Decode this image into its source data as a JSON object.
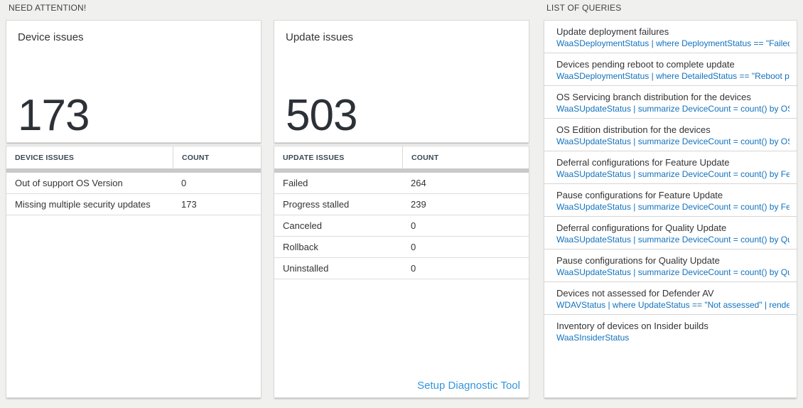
{
  "colors": {
    "background": "#f0f0ee",
    "big_number_text": "#2b3137",
    "query_link_blue": "#1272bd",
    "setup_link_blue": "#3296dc",
    "scrollband_gray": "#c9c9c9"
  },
  "need_attention": {
    "section_title": "NEED ATTENTION!",
    "cards": [
      {
        "title": "Device issues",
        "big_number": "173",
        "table": {
          "columns": [
            "DEVICE ISSUES",
            "COUNT"
          ],
          "rows": [
            {
              "label": "Out of support OS Version",
              "count": "0"
            },
            {
              "label": "Missing multiple security updates",
              "count": "173"
            }
          ]
        }
      },
      {
        "title": "Update issues",
        "big_number": "503",
        "table": {
          "columns": [
            "UPDATE ISSUES",
            "COUNT"
          ],
          "rows": [
            {
              "label": "Failed",
              "count": "264"
            },
            {
              "label": "Progress stalled",
              "count": "239"
            },
            {
              "label": "Canceled",
              "count": "0"
            },
            {
              "label": "Rollback",
              "count": "0"
            },
            {
              "label": "Uninstalled",
              "count": "0"
            }
          ]
        },
        "footer_link": "Setup Diagnostic Tool"
      }
    ]
  },
  "queries": {
    "section_title": "LIST OF QUERIES",
    "items": [
      {
        "title": "Update deployment failures",
        "query": "WaaSDeploymentStatus | where DeploymentStatus == \"Failed\" |..."
      },
      {
        "title": "Devices pending reboot to complete update",
        "query": "WaaSDeploymentStatus | where DetailedStatus == \"Reboot pend..."
      },
      {
        "title": "OS Servicing branch distribution for the devices",
        "query": "WaaSUpdateStatus | summarize DeviceCount = count() by OSSer..."
      },
      {
        "title": "OS Edition distribution for the devices",
        "query": "WaaSUpdateStatus | summarize DeviceCount = count() by OSEdit..."
      },
      {
        "title": "Deferral configurations for Feature Update",
        "query": "WaaSUpdateStatus | summarize DeviceCount = count() by Featur..."
      },
      {
        "title": "Pause configurations for Feature Update",
        "query": "WaaSUpdateStatus | summarize DeviceCount = count() by Featur..."
      },
      {
        "title": "Deferral configurations for Quality Update",
        "query": "WaaSUpdateStatus | summarize DeviceCount = count() by Qualit..."
      },
      {
        "title": "Pause configurations for Quality Update",
        "query": "WaaSUpdateStatus | summarize DeviceCount = count() by Qualit..."
      },
      {
        "title": "Devices not assessed for Defender AV",
        "query": "WDAVStatus | where UpdateStatus == \"Not assessed\" | render ta..."
      },
      {
        "title": "Inventory of devices on Insider builds",
        "query": "WaaSInsiderStatus"
      }
    ]
  }
}
